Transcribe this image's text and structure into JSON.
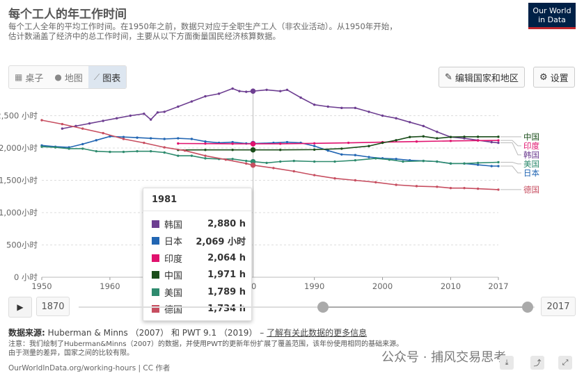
{
  "header": {
    "title": "每个工人的年工作时间",
    "subtitle": "每个工人全年的平均工作时间。在1950年之前，数据只对应于全职生产工人（非农业活动）。从1950年开始，估计数涵盖了经济中的总工作时间，主要从以下方面衡量国民经济核算数据。",
    "logo_line1": "Our World",
    "logo_line2": "in Data"
  },
  "tabs": [
    {
      "label": "桌子",
      "icon": "table-icon"
    },
    {
      "label": "地图",
      "icon": "globe-icon"
    },
    {
      "label": "图表",
      "icon": "line-chart-icon"
    }
  ],
  "toolbar": {
    "edit_label": "编辑国家和地区",
    "settings_label": "设置"
  },
  "chart_data": {
    "type": "line",
    "xlim": [
      1950,
      2017
    ],
    "ylim": [
      0,
      3000
    ],
    "x_ticks": [
      1950,
      1960,
      1970,
      1980,
      1990,
      2000,
      2010,
      2017
    ],
    "x_tick_labels": [
      "1950",
      "1960",
      "1970",
      "1980",
      "1990",
      "2000",
      "2010",
      "2017"
    ],
    "y_ticks": [
      0,
      500,
      1000,
      1500,
      2000,
      2500
    ],
    "y_tick_labels": [
      "0 小时",
      "500小时",
      "1,000小时",
      "1,500小时",
      "2,000小时",
      "2,500 小时"
    ],
    "grid": "horizontal-dashed",
    "legend": "right-end-labels",
    "hover_x": 1981,
    "series": [
      {
        "name": "韩国",
        "color": "#6d3e91",
        "x": [
          1953,
          1955,
          1957,
          1959,
          1961,
          1963,
          1965,
          1966,
          1967,
          1968,
          1970,
          1972,
          1974,
          1976,
          1978,
          1979,
          1980,
          1981,
          1983,
          1985,
          1986,
          1988,
          1990,
          1992,
          1994,
          1996,
          1998,
          2000,
          2002,
          2004,
          2006,
          2008,
          2010,
          2012,
          2014,
          2016,
          2017
        ],
        "y": [
          2300,
          2340,
          2380,
          2420,
          2460,
          2500,
          2530,
          2440,
          2550,
          2560,
          2640,
          2720,
          2800,
          2840,
          2920,
          2880,
          2870,
          2880,
          2900,
          2880,
          2900,
          2780,
          2670,
          2640,
          2620,
          2620,
          2560,
          2500,
          2460,
          2400,
          2340,
          2250,
          2170,
          2150,
          2120,
          2090,
          2080
        ]
      },
      {
        "name": "日本",
        "color": "#2266b3",
        "x": [
          1950,
          1952,
          1954,
          1956,
          1958,
          1960,
          1962,
          1964,
          1966,
          1968,
          1970,
          1972,
          1974,
          1976,
          1978,
          1980,
          1981,
          1984,
          1986,
          1988,
          1990,
          1992,
          1994,
          1996,
          1998,
          2000,
          2002,
          2004,
          2006,
          2008,
          2010,
          2012,
          2014,
          2016,
          2017
        ],
        "y": [
          2040,
          2020,
          2010,
          2060,
          2120,
          2180,
          2170,
          2160,
          2150,
          2140,
          2150,
          2140,
          2100,
          2080,
          2090,
          2070,
          2069,
          2080,
          2090,
          2080,
          2031,
          1960,
          1900,
          1890,
          1860,
          1840,
          1830,
          1810,
          1800,
          1790,
          1760,
          1760,
          1740,
          1720,
          1720
        ]
      },
      {
        "name": "印度",
        "color": "#e0126e",
        "x": [
          1970,
          1974,
          1978,
          1981,
          1985,
          1990,
          1995,
          2000,
          2005,
          2010,
          2014,
          2017
        ],
        "y": [
          2070,
          2068,
          2066,
          2064,
          2066,
          2072,
          2080,
          2090,
          2100,
          2110,
          2115,
          2117
        ]
      },
      {
        "name": "中国",
        "color": "#1a4d1a",
        "x": [
          1970,
          1974,
          1978,
          1981,
          1985,
          1990,
          1994,
          1998,
          2000,
          2002,
          2004,
          2006,
          2008,
          2010,
          2012,
          2014,
          2017
        ],
        "y": [
          1970,
          1971,
          1971,
          1971,
          1971,
          1975,
          1990,
          2030,
          2080,
          2120,
          2170,
          2180,
          2150,
          2170,
          2174,
          2174,
          2174
        ]
      },
      {
        "name": "美国",
        "color": "#2e8b6e",
        "x": [
          1950,
          1952,
          1954,
          1956,
          1958,
          1960,
          1962,
          1964,
          1966,
          1968,
          1970,
          1972,
          1974,
          1976,
          1978,
          1980,
          1981,
          1983,
          1985,
          1987,
          1990,
          1993,
          1996,
          1999,
          2001,
          2003,
          2006,
          2008,
          2010,
          2012,
          2014,
          2017
        ],
        "y": [
          2020,
          2010,
          1990,
          1990,
          1950,
          1940,
          1940,
          1950,
          1950,
          1930,
          1880,
          1880,
          1840,
          1830,
          1830,
          1800,
          1789,
          1770,
          1790,
          1800,
          1790,
          1790,
          1810,
          1840,
          1820,
          1790,
          1800,
          1790,
          1760,
          1760,
          1770,
          1780
        ]
      },
      {
        "name": "德国",
        "color": "#c74e60",
        "x": [
          1950,
          1953,
          1956,
          1959,
          1962,
          1965,
          1968,
          1971,
          1974,
          1977,
          1980,
          1981,
          1984,
          1987,
          1990,
          1993,
          1996,
          1999,
          2002,
          2005,
          2008,
          2010,
          2012,
          2014,
          2017
        ],
        "y": [
          2430,
          2370,
          2300,
          2230,
          2140,
          2080,
          2010,
          1960,
          1880,
          1820,
          1760,
          1734,
          1690,
          1640,
          1580,
          1530,
          1500,
          1470,
          1430,
          1410,
          1400,
          1380,
          1380,
          1370,
          1356
        ]
      }
    ],
    "tooltip": {
      "year": "1981",
      "rows": [
        {
          "name": "韩国",
          "value": "2,880 h",
          "color": "#6d3e91"
        },
        {
          "name": "日本",
          "value": "2,069 小时",
          "color": "#2266b3"
        },
        {
          "name": "印度",
          "value": "2,064 h",
          "color": "#e0126e"
        },
        {
          "name": "中国",
          "value": "1,971 h",
          "color": "#1a4d1a"
        },
        {
          "name": "美国",
          "value": "1,789 h",
          "color": "#2e8b6e"
        },
        {
          "name": "德国",
          "value": "1,734 h",
          "color": "#c74e60"
        }
      ]
    }
  },
  "timeline": {
    "start_label": "1870",
    "end_label": "2017",
    "range_start": 1950,
    "range_end": 2017,
    "min": 1870,
    "max": 2017
  },
  "footer": {
    "source_label": "数据来源:",
    "source_text": "Huberman & Minns （2007） 和 PWT 9.1 （2019） –",
    "source_link": "了解有关此数据的更多信息",
    "note": "注意：我们绘制了Huberman&Minns（2007）的数据，并使用PWT的更新年份扩展了覆盖范围，该年份使用相同的基础来源。由于测量的差异，国家之间的比较有限。",
    "url": "OurWorldInData.org/working-hours | CC 作者"
  },
  "watermark": "公众号 · 捕风交易思考"
}
